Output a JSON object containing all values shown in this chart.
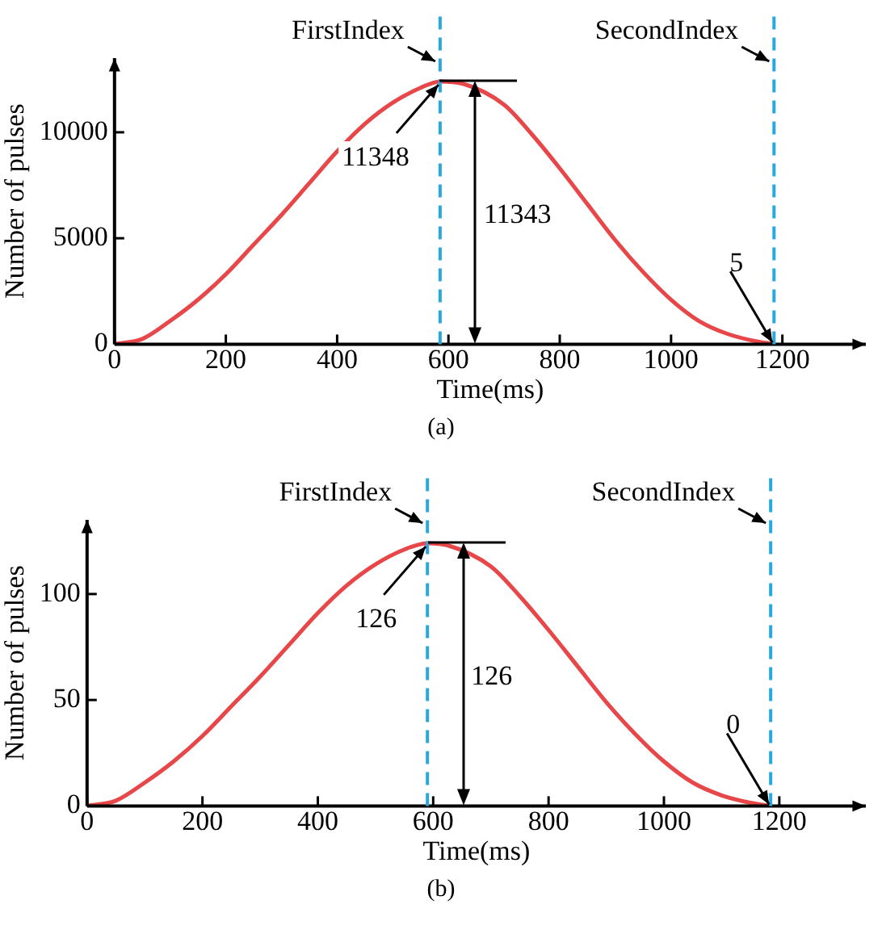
{
  "chart_data": [
    {
      "type": "line",
      "xlabel": "Time(ms)",
      "ylabel": "Number of pulses",
      "xlim": [
        0,
        1350
      ],
      "ylim": [
        0,
        13500
      ],
      "xticks": [
        0,
        200,
        400,
        600,
        800,
        1000,
        1200
      ],
      "yticks": [
        0,
        5000,
        10000
      ],
      "marker": "none",
      "legend": false,
      "x": [
        0,
        50,
        100,
        150,
        200,
        250,
        300,
        350,
        400,
        450,
        500,
        550,
        585,
        625,
        700,
        750,
        800,
        850,
        900,
        950,
        1000,
        1050,
        1100,
        1150,
        1185
      ],
      "series": [
        {
          "color": "#e8474a",
          "values": [
            0,
            250,
            1100,
            2100,
            3300,
            4700,
            6100,
            7600,
            9100,
            10400,
            11400,
            12100,
            12400,
            12300,
            11300,
            9900,
            8300,
            6600,
            4900,
            3400,
            2100,
            1100,
            500,
            150,
            5
          ]
        }
      ],
      "ref_lines": [
        {
          "axis": "x",
          "value": 585,
          "label": "FirstIndex",
          "color": "#29a8e0",
          "line_style": "dashed"
        },
        {
          "axis": "x",
          "value": 1185,
          "label": "SecondIndex",
          "color": "#29a8e0",
          "line_style": "dashed"
        }
      ],
      "annotations": [
        {
          "text": "11348",
          "x": 585,
          "y": 12400
        },
        "11343",
        {
          "text": "5",
          "x": 1185,
          "y": 5
        },
        "(a)"
      ]
    },
    {
      "type": "line",
      "xlabel": "Time(ms)",
      "ylabel": "Number of pulses",
      "xlim": [
        0,
        1350
      ],
      "ylim": [
        0,
        135
      ],
      "xticks": [
        0,
        200,
        400,
        600,
        800,
        1000,
        1200
      ],
      "yticks": [
        0,
        50,
        100
      ],
      "marker": "none",
      "legend": false,
      "x": [
        0,
        50,
        100,
        150,
        200,
        250,
        300,
        350,
        400,
        450,
        500,
        550,
        590,
        625,
        700,
        750,
        800,
        850,
        900,
        950,
        1000,
        1050,
        1100,
        1150,
        1185
      ],
      "series": [
        {
          "color": "#e8474a",
          "values": [
            0,
            2.5,
            11,
            21,
            33,
            47,
            61,
            76,
            91,
            104,
            114,
            121,
            124,
            123,
            113,
            99,
            83,
            66,
            49,
            34,
            21,
            11,
            5,
            1.5,
            0
          ]
        }
      ],
      "ref_lines": [
        {
          "axis": "x",
          "value": 590,
          "label": "FirstIndex",
          "color": "#29a8e0",
          "line_style": "dashed"
        },
        {
          "axis": "x",
          "value": 1185,
          "label": "SecondIndex",
          "color": "#29a8e0",
          "line_style": "dashed"
        }
      ],
      "annotations": [
        {
          "text": "126",
          "x": 590,
          "y": 124
        },
        "126",
        {
          "text": "0",
          "x": 1185,
          "y": 0
        },
        "(b)"
      ]
    }
  ]
}
